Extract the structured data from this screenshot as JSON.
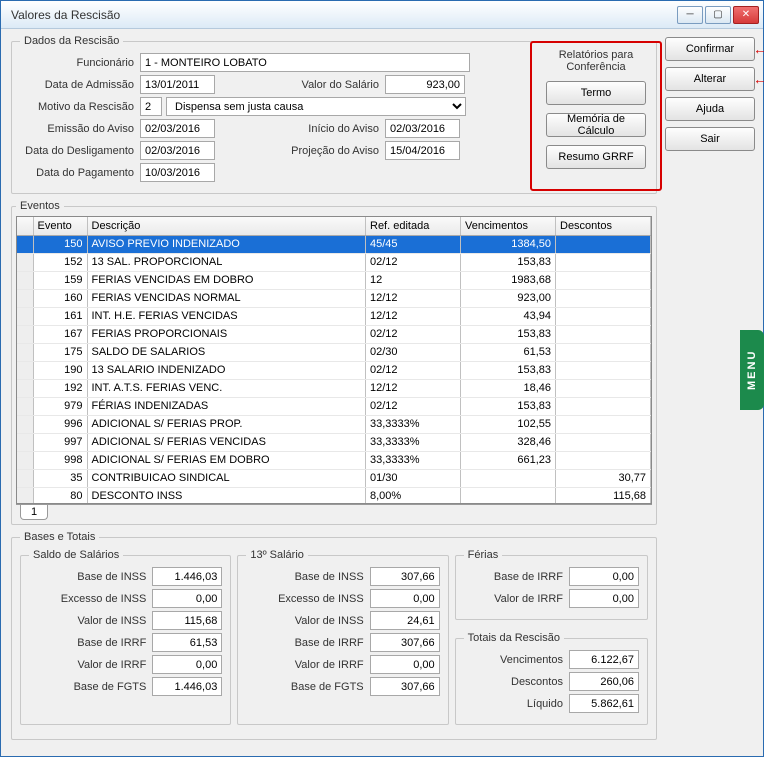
{
  "window": {
    "title": "Valores da Rescisão"
  },
  "menu_tab": "MENU",
  "buttons": {
    "confirmar": "Confirmar",
    "alterar": "Alterar",
    "ajuda": "Ajuda",
    "sair": "Sair"
  },
  "arrows": {
    "color": "#d60000"
  },
  "conferencia": {
    "title": "Relatórios para Conferência",
    "termo": "Termo",
    "memoria": "Memória de Cálculo",
    "resumo": "Resumo GRRF"
  },
  "dados": {
    "legend": "Dados da Rescisão",
    "labels": {
      "funcionario": "Funcionário",
      "data_admissao": "Data de Admissão",
      "valor_salario": "Valor do Salário",
      "motivo": "Motivo da Rescisão",
      "emissao_aviso": "Emissão do Aviso",
      "inicio_aviso": "Início do Aviso",
      "data_desligamento": "Data do Desligamento",
      "projecao_aviso": "Projeção do Aviso",
      "data_pagamento": "Data do Pagamento"
    },
    "values": {
      "funcionario": "1 - MONTEIRO LOBATO",
      "data_admissao": "13/01/2011",
      "valor_salario": "923,00",
      "motivo_codigo": "2",
      "motivo_texto": "Dispensa sem justa causa",
      "emissao_aviso": "02/03/2016",
      "inicio_aviso": "02/03/2016",
      "data_desligamento": "02/03/2016",
      "projecao_aviso": "15/04/2016",
      "data_pagamento": "10/03/2016"
    }
  },
  "eventos": {
    "legend": "Eventos",
    "cols": {
      "evento": "Evento",
      "descricao": "Descrição",
      "ref": "Ref. editada",
      "venc": "Vencimentos",
      "desc": "Descontos"
    },
    "rows": [
      {
        "evt": "150",
        "desc": "AVISO PREVIO INDENIZADO",
        "ref": "45/45",
        "venc": "1384,50",
        "dsc": "",
        "sel": true
      },
      {
        "evt": "152",
        "desc": "13 SAL. PROPORCIONAL",
        "ref": "02/12",
        "venc": "153,83",
        "dsc": ""
      },
      {
        "evt": "159",
        "desc": "FERIAS VENCIDAS EM DOBRO",
        "ref": "12",
        "venc": "1983,68",
        "dsc": ""
      },
      {
        "evt": "160",
        "desc": "FERIAS VENCIDAS NORMAL",
        "ref": "12/12",
        "venc": "923,00",
        "dsc": ""
      },
      {
        "evt": "161",
        "desc": "INT. H.E. FERIAS VENCIDAS",
        "ref": "12/12",
        "venc": "43,94",
        "dsc": ""
      },
      {
        "evt": "167",
        "desc": "FERIAS PROPORCIONAIS",
        "ref": "02/12",
        "venc": "153,83",
        "dsc": ""
      },
      {
        "evt": "175",
        "desc": "SALDO DE SALARIOS",
        "ref": "02/30",
        "venc": "61,53",
        "dsc": ""
      },
      {
        "evt": "190",
        "desc": "13 SALARIO INDENIZADO",
        "ref": "02/12",
        "venc": "153,83",
        "dsc": ""
      },
      {
        "evt": "192",
        "desc": "INT. A.T.S. FERIAS VENC.",
        "ref": "12/12",
        "venc": "18,46",
        "dsc": ""
      },
      {
        "evt": "979",
        "desc": "FÉRIAS INDENIZADAS",
        "ref": "02/12",
        "venc": "153,83",
        "dsc": ""
      },
      {
        "evt": "996",
        "desc": "ADICIONAL S/ FERIAS PROP.",
        "ref": "33,3333%",
        "venc": "102,55",
        "dsc": ""
      },
      {
        "evt": "997",
        "desc": "ADICIONAL S/ FERIAS VENCIDAS",
        "ref": "33,3333%",
        "venc": "328,46",
        "dsc": ""
      },
      {
        "evt": "998",
        "desc": "ADICIONAL S/ FERIAS EM DOBRO",
        "ref": "33,3333%",
        "venc": "661,23",
        "dsc": ""
      },
      {
        "evt": "35",
        "desc": "CONTRIBUICAO SINDICAL",
        "ref": "01/30",
        "venc": "",
        "dsc": "30,77"
      },
      {
        "evt": "80",
        "desc": "DESCONTO INSS",
        "ref": "8,00%",
        "venc": "",
        "dsc": "115,68"
      }
    ],
    "tab": "1"
  },
  "bases": {
    "legend": "Bases e Totais",
    "saldo": {
      "legend": "Saldo de Salários",
      "base_inss_l": "Base de INSS",
      "base_inss": "1.446,03",
      "excesso_inss_l": "Excesso de INSS",
      "excesso_inss": "0,00",
      "valor_inss_l": "Valor de INSS",
      "valor_inss": "115,68",
      "base_irrf_l": "Base de IRRF",
      "base_irrf": "61,53",
      "valor_irrf_l": "Valor de IRRF",
      "valor_irrf": "0,00",
      "base_fgts_l": "Base de FGTS",
      "base_fgts": "1.446,03"
    },
    "decimo": {
      "legend": "13º Salário",
      "base_inss_l": "Base de INSS",
      "base_inss": "307,66",
      "excesso_inss_l": "Excesso de INSS",
      "excesso_inss": "0,00",
      "valor_inss_l": "Valor de INSS",
      "valor_inss": "24,61",
      "base_irrf_l": "Base de IRRF",
      "base_irrf": "307,66",
      "valor_irrf_l": "Valor de IRRF",
      "valor_irrf": "0,00",
      "base_fgts_l": "Base de FGTS",
      "base_fgts": "307,66"
    },
    "ferias": {
      "legend": "Férias",
      "base_irrf_l": "Base de IRRF",
      "base_irrf": "0,00",
      "valor_irrf_l": "Valor de IRRF",
      "valor_irrf": "0,00"
    },
    "totais": {
      "legend": "Totais da Rescisão",
      "venc_l": "Vencimentos",
      "venc": "6.122,67",
      "desc_l": "Descontos",
      "desc": "260,06",
      "liq_l": "Líquido",
      "liq": "5.862,61"
    }
  }
}
